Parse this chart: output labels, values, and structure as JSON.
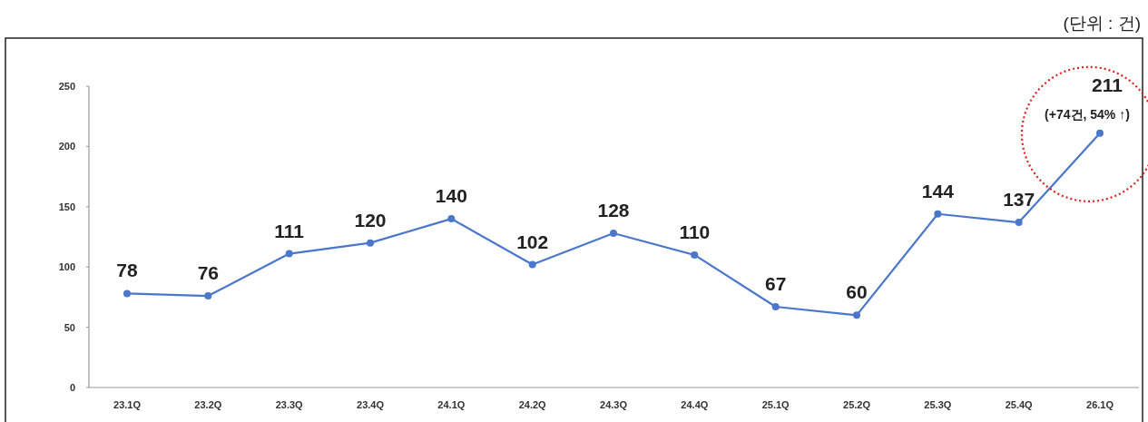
{
  "chart_data": {
    "type": "line",
    "categories": [
      "23.1Q",
      "23.2Q",
      "23.3Q",
      "23.4Q",
      "24.1Q",
      "24.2Q",
      "24.3Q",
      "24.4Q",
      "25.1Q",
      "25.2Q",
      "25.3Q",
      "25.4Q",
      "26.1Q"
    ],
    "values": [
      78,
      76,
      111,
      120,
      140,
      102,
      128,
      110,
      67,
      60,
      144,
      137,
      211
    ],
    "color": "#4a76cc",
    "ylim": [
      0,
      250
    ],
    "yticks": [
      0,
      50,
      100,
      150,
      200,
      250
    ],
    "data_labels": true,
    "marker": "circle",
    "grid": false,
    "annotations": [
      "(단위 : 건)",
      {
        "text": "(+74건, 54% ↑)",
        "x": "26.1Q",
        "y": 211
      }
    ]
  }
}
